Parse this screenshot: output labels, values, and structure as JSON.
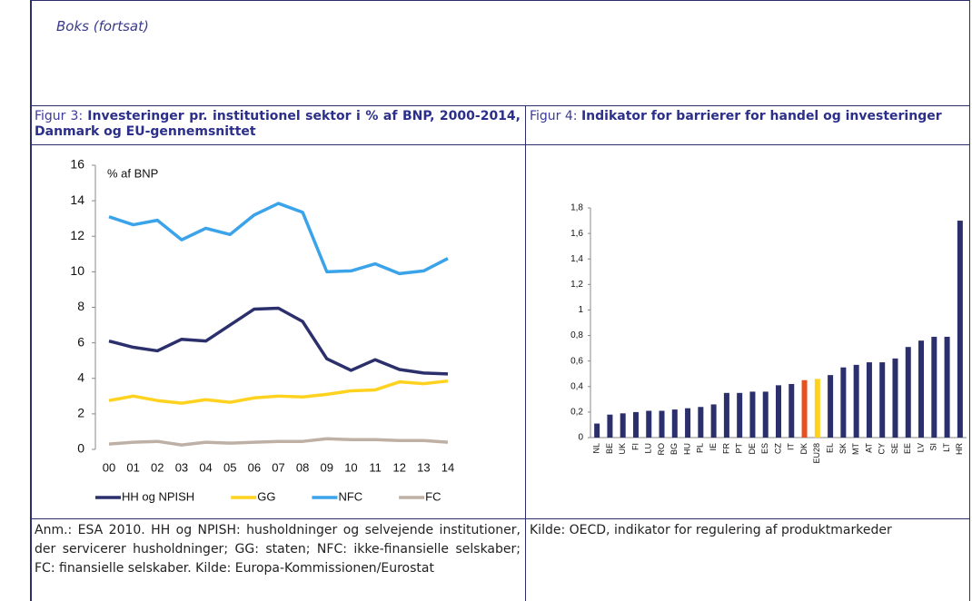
{
  "header": "Boks (fortsat)",
  "figures": [
    {
      "label": "Figur 3:",
      "title": "Investeringer pr. institutionel sektor i % af BNP, 2000-2014, Danmark og EU-gennemsnittet",
      "note": "Anm.: ESA 2010. HH og NPISH: husholdninger og selvejende institutioner, der servicerer husholdninger; GG: staten; NFC: ikke-finansielle selskaber; FC: finansielle selskaber. Kilde: Europa-Kommissionen/Eurostat"
    },
    {
      "label": "Figur 4:",
      "title": "Indikator for barrierer for handel og investeringer",
      "note": "Kilde: OECD, indikator for regulering af produktmarkeder"
    }
  ],
  "chart_data": [
    {
      "type": "line",
      "y_label": "% af BNP",
      "categories": [
        "00",
        "01",
        "02",
        "03",
        "04",
        "05",
        "06",
        "07",
        "08",
        "09",
        "10",
        "11",
        "12",
        "13",
        "14"
      ],
      "series": [
        {
          "name": "HH og NPISH",
          "color": "#2b2f6b",
          "values": [
            6.1,
            5.75,
            5.55,
            6.2,
            6.1,
            7.0,
            7.9,
            7.95,
            7.2,
            5.1,
            4.45,
            5.05,
            4.5,
            4.3,
            4.25
          ]
        },
        {
          "name": "GG",
          "color": "#ffd21f",
          "values": [
            2.75,
            3.0,
            2.75,
            2.6,
            2.8,
            2.65,
            2.9,
            3.0,
            2.95,
            3.1,
            3.3,
            3.35,
            3.8,
            3.7,
            3.85
          ]
        },
        {
          "name": "NFC",
          "color": "#3aa3ea",
          "values": [
            13.1,
            12.65,
            12.9,
            11.8,
            12.45,
            12.1,
            13.2,
            13.85,
            13.35,
            10.0,
            10.05,
            10.45,
            9.9,
            10.05,
            10.75
          ]
        },
        {
          "name": "FC",
          "color": "#bfb0a6",
          "values": [
            0.3,
            0.4,
            0.45,
            0.25,
            0.4,
            0.35,
            0.4,
            0.45,
            0.45,
            0.6,
            0.55,
            0.55,
            0.5,
            0.5,
            0.4
          ]
        }
      ],
      "ylim": [
        0,
        16
      ],
      "yticks": [
        0,
        2,
        4,
        6,
        8,
        10,
        12,
        14,
        16
      ],
      "legend": "bottom"
    },
    {
      "type": "bar",
      "categories": [
        "NL",
        "BE",
        "UK",
        "FI",
        "LU",
        "RO",
        "BG",
        "HU",
        "PL",
        "IE",
        "FR",
        "PT",
        "DE",
        "ES",
        "CZ",
        "IT",
        "DK",
        "EU28",
        "EL",
        "SK",
        "MT",
        "AT",
        "CY",
        "SE",
        "EE",
        "LV",
        "SI",
        "LT",
        "HR"
      ],
      "values": [
        0.11,
        0.18,
        0.19,
        0.2,
        0.21,
        0.21,
        0.22,
        0.23,
        0.24,
        0.26,
        0.35,
        0.35,
        0.36,
        0.36,
        0.41,
        0.42,
        0.45,
        0.46,
        0.49,
        0.55,
        0.57,
        0.59,
        0.59,
        0.62,
        0.71,
        0.76,
        0.79,
        0.79,
        1.7
      ],
      "colors": [
        "#2b2f6b",
        "#2b2f6b",
        "#2b2f6b",
        "#2b2f6b",
        "#2b2f6b",
        "#2b2f6b",
        "#2b2f6b",
        "#2b2f6b",
        "#2b2f6b",
        "#2b2f6b",
        "#2b2f6b",
        "#2b2f6b",
        "#2b2f6b",
        "#2b2f6b",
        "#2b2f6b",
        "#2b2f6b",
        "#e8501e",
        "#ffd21f",
        "#2b2f6b",
        "#2b2f6b",
        "#2b2f6b",
        "#2b2f6b",
        "#2b2f6b",
        "#2b2f6b",
        "#2b2f6b",
        "#2b2f6b",
        "#2b2f6b",
        "#2b2f6b",
        "#2b2f6b"
      ],
      "ylim": [
        0,
        1.8
      ],
      "yticks": [
        0,
        {
          "value": 0.2,
          "label": "0,2"
        },
        {
          "value": 0.4,
          "label": "0,4"
        },
        {
          "value": 0.6,
          "label": "0,6"
        },
        {
          "value": 0.8,
          "label": "0,8"
        },
        1,
        {
          "value": 1.2,
          "label": "1,2"
        },
        {
          "value": 1.4,
          "label": "1,4"
        },
        {
          "value": 1.6,
          "label": "1,6"
        },
        {
          "value": 1.8,
          "label": "1,8"
        }
      ]
    }
  ]
}
